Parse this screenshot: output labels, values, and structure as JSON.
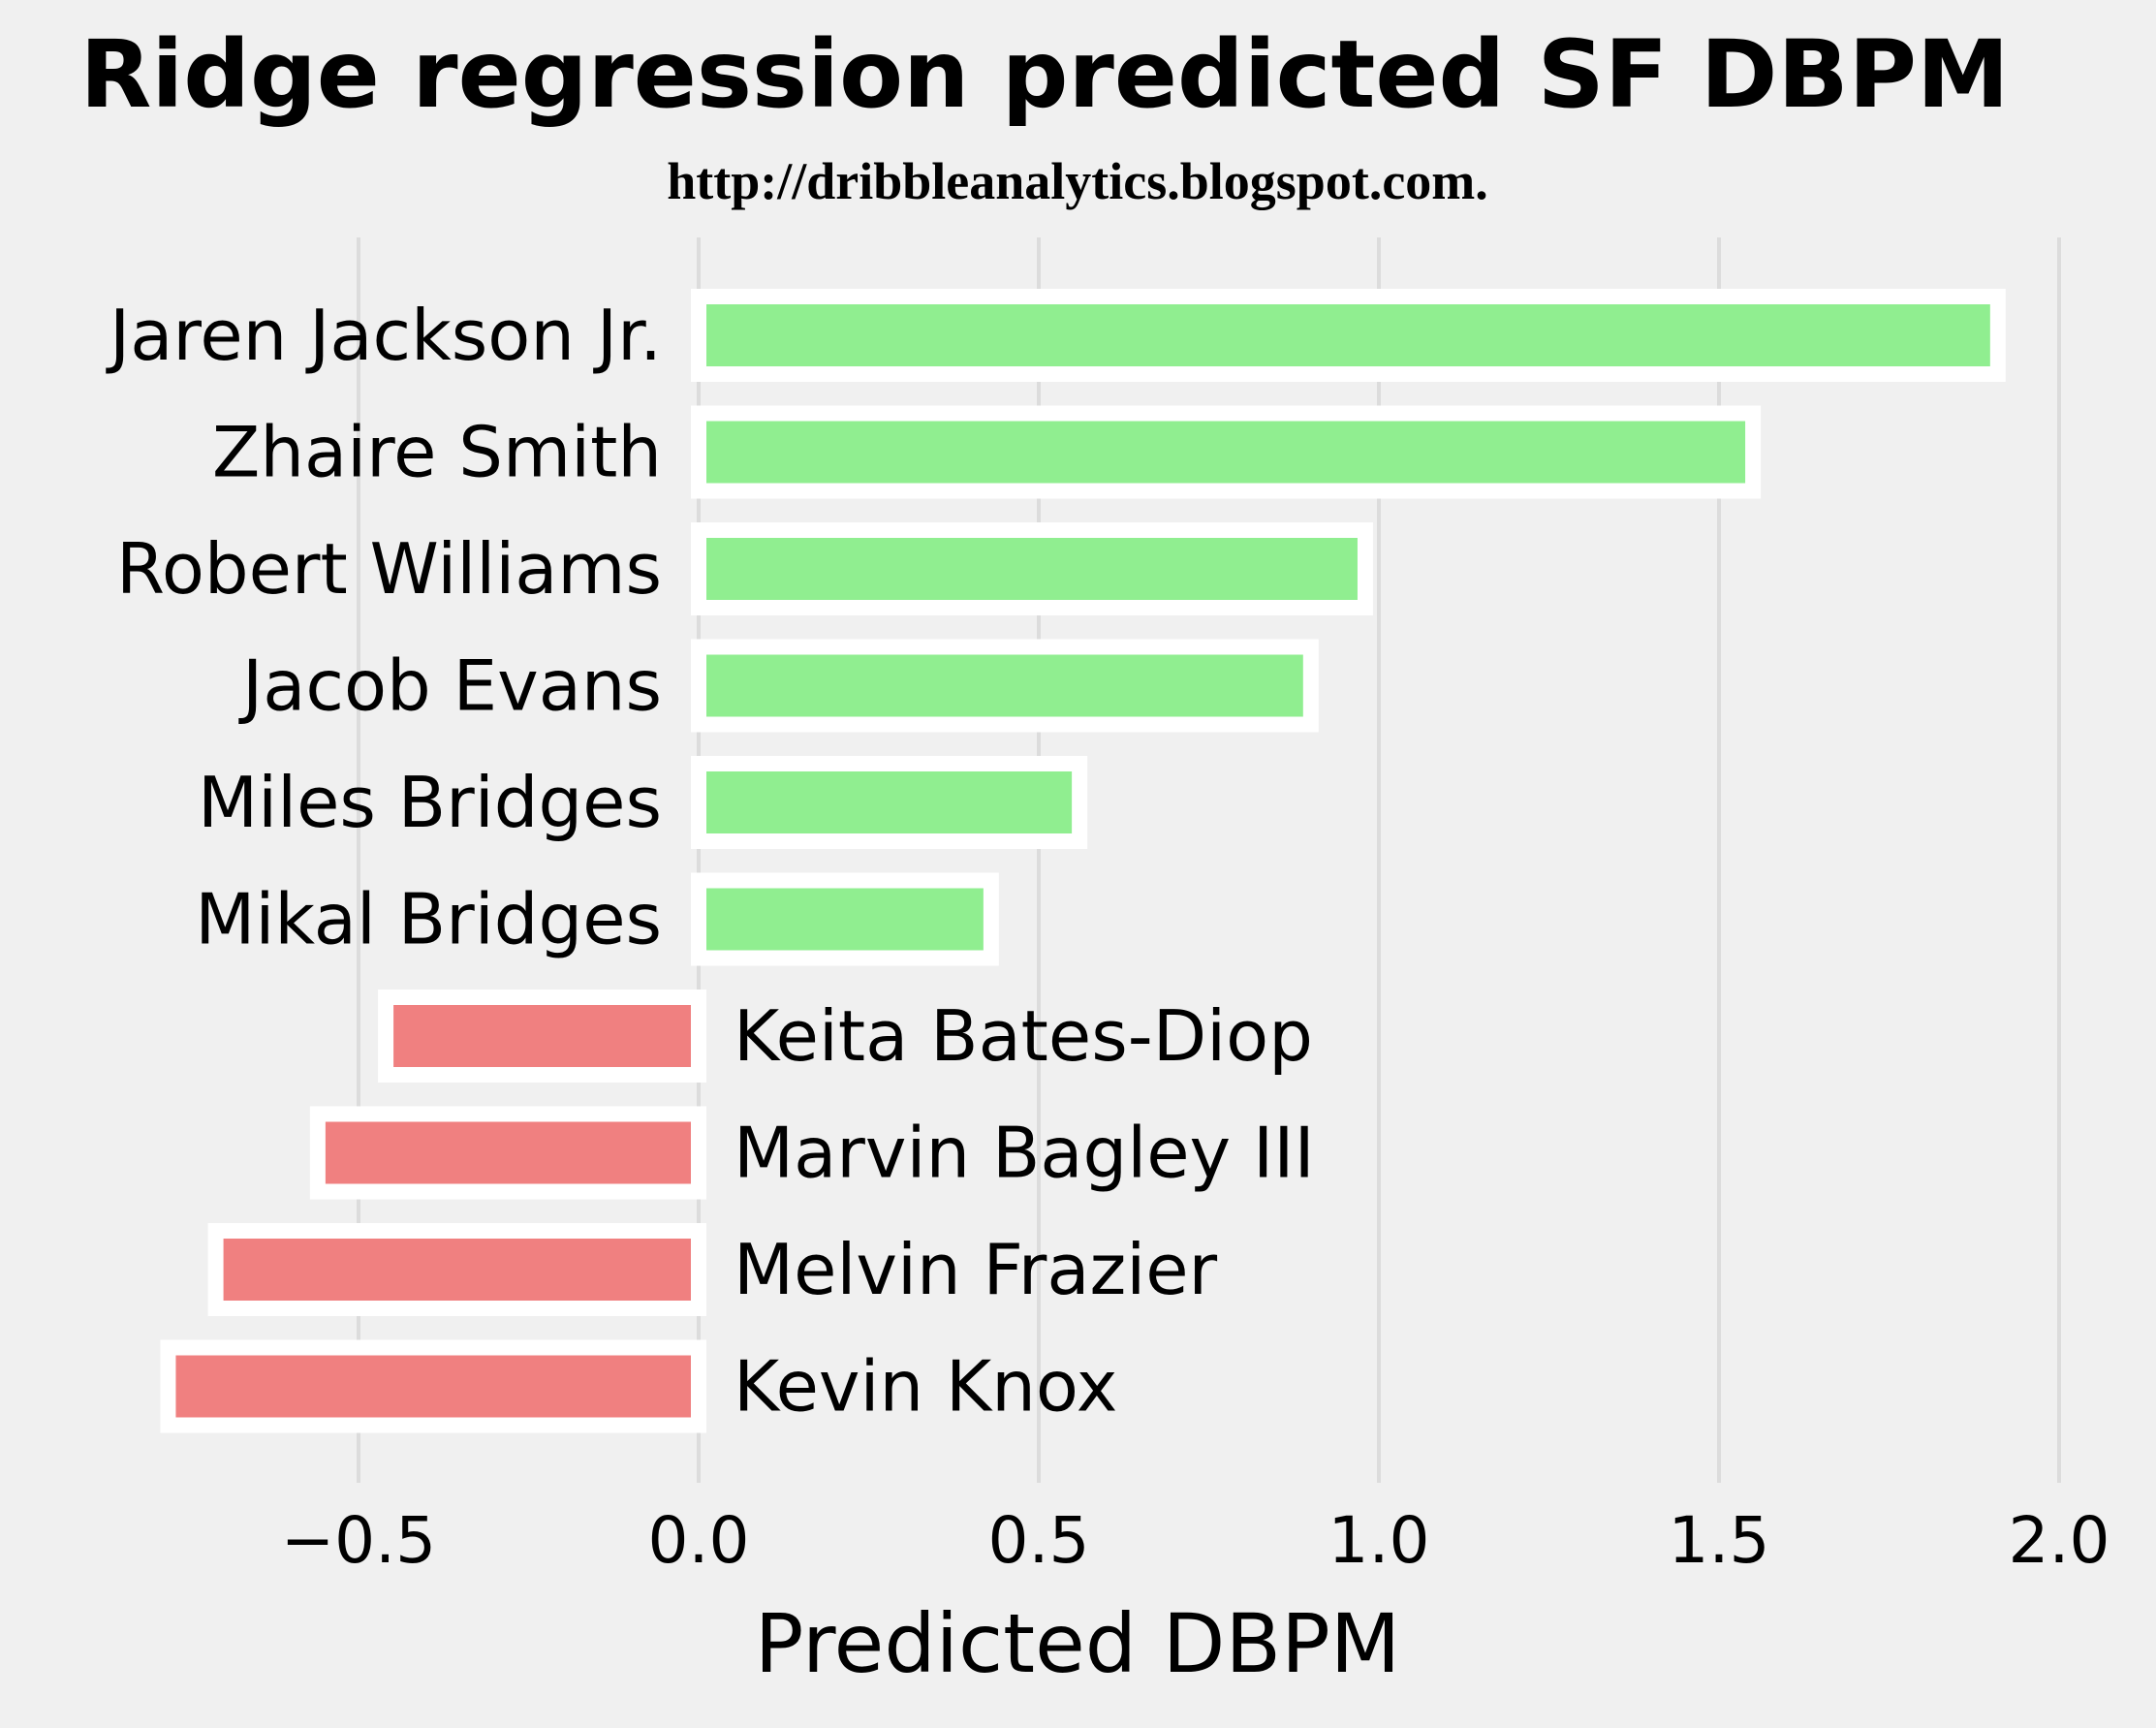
{
  "chart_data": {
    "type": "bar",
    "orientation": "horizontal",
    "title": "Ridge regression predicted SF DBPM",
    "subtitle": "http://dribbleanalytics.blogspot.com.",
    "xlabel": "Predicted DBPM",
    "xlim": [
      -1.0,
      2.0
    ],
    "xticks": [
      -0.5,
      0.0,
      0.5,
      1.0,
      1.5,
      2.0
    ],
    "xtick_labels": [
      "−0.5",
      "0.0",
      "0.5",
      "1.0",
      "1.5",
      "2.0"
    ],
    "grid": "vertical",
    "categories": [
      "Jaren Jackson Jr.",
      "Zhaire Smith",
      "Robert Williams",
      "Jacob Evans",
      "Miles Bridges",
      "Mikal Bridges",
      "Keita Bates-Diop",
      "Marvin Bagley III",
      "Melvin Frazier",
      "Kevin Knox"
    ],
    "values": [
      1.91,
      1.55,
      0.98,
      0.9,
      0.56,
      0.43,
      -0.46,
      -0.56,
      -0.71,
      -0.78
    ],
    "colors": {
      "positive": "#90ee90",
      "negative": "#f08080",
      "bar_edge": "#ffffff",
      "grid": "#dcdcdc",
      "background": "#f0f0f0"
    }
  }
}
